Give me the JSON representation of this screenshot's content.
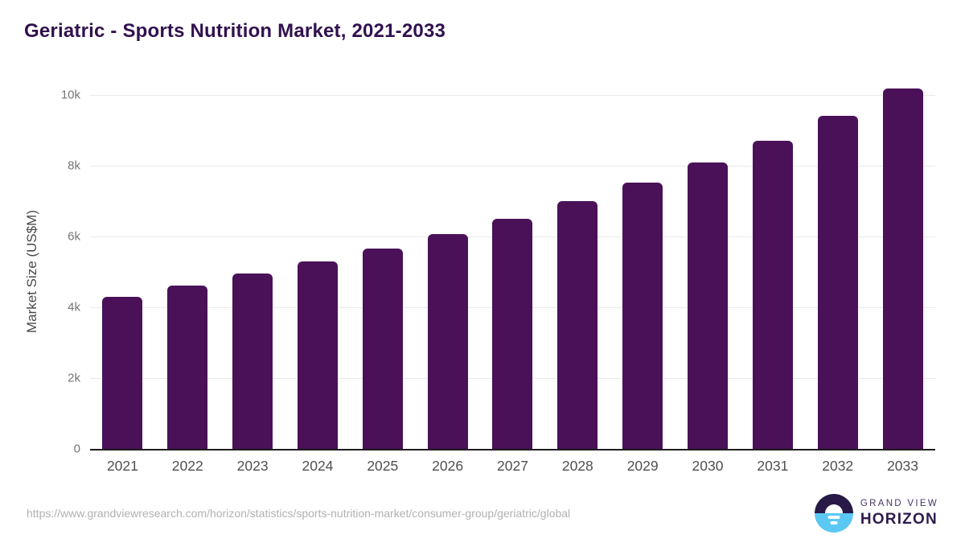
{
  "page": {
    "title": "Geriatric - Sports Nutrition Market, 2021-2033"
  },
  "chart_data": {
    "type": "bar",
    "title": "Geriatric - Sports Nutrition Market, 2021-2033",
    "categories": [
      "2021",
      "2022",
      "2023",
      "2024",
      "2025",
      "2026",
      "2027",
      "2028",
      "2029",
      "2030",
      "2031",
      "2032",
      "2033"
    ],
    "values": [
      4300,
      4620,
      4950,
      5290,
      5650,
      6060,
      6500,
      7000,
      7520,
      8090,
      8710,
      9400,
      10180
    ],
    "xlabel": "",
    "ylabel": "Market Size (US$M)",
    "ylim": [
      0,
      10000
    ],
    "ytick_labels_top_to_bottom": [
      "10k",
      "8k",
      "6k",
      "4k",
      "2k",
      "0"
    ],
    "grid": true,
    "legend_position": "none",
    "bar_color": "#4a1158"
  },
  "footer": {
    "source_url": "https://www.grandviewresearch.com/horizon/statistics/sports-nutrition-market/consumer-group/geriatric/global",
    "brand": {
      "top": "GRAND VIEW",
      "bottom": "HORIZON"
    }
  },
  "colors": {
    "title_text": "#31114e",
    "bar": "#4a1158",
    "axis_line": "#1c1c1c",
    "gridline": "#e9e9e9",
    "ytick_text": "#757575",
    "xlabel_text": "#4f4f4f",
    "url_text": "#b1b1b1",
    "logo_dark": "#281947",
    "logo_blue": "#5ac8f2"
  }
}
